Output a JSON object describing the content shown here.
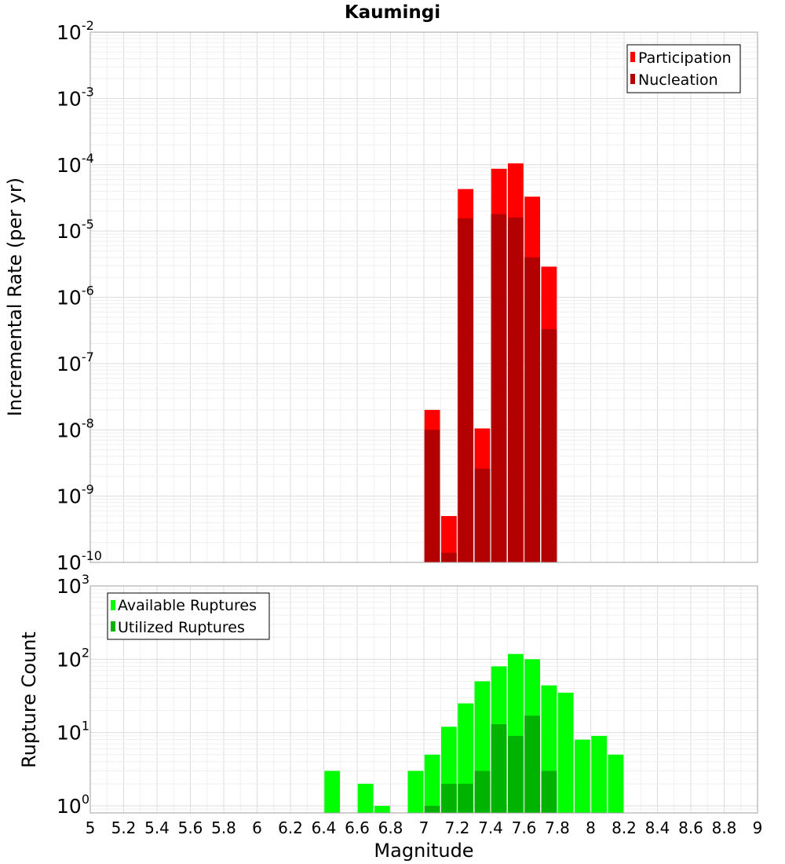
{
  "colors": {
    "participation": "#ff0000",
    "nucleation": "#b30000",
    "available": "#00ff00",
    "utilized": "#00b300"
  },
  "chart_data": [
    {
      "type": "bar",
      "title": "Kaumingi",
      "xlabel": "",
      "ylabel": "Incremental Rate (per yr)",
      "yscale": "log",
      "ylim": [
        1e-10,
        0.01
      ],
      "xlim": [
        5,
        9
      ],
      "grid": true,
      "legend": {
        "placement": "top-right",
        "entries": [
          "Participation",
          "Nucleation"
        ]
      },
      "x": [
        7.05,
        7.15,
        7.25,
        7.35,
        7.45,
        7.55,
        7.65,
        7.75
      ],
      "series": [
        {
          "name": "Participation",
          "values": [
            2e-08,
            5e-10,
            4.3e-05,
            1.05e-08,
            8.7e-05,
            0.000105,
            3.3e-05,
            2.9e-06
          ]
        },
        {
          "name": "Nucleation",
          "values": [
            1e-08,
            1.4e-10,
            1.55e-05,
            2.6e-09,
            1.8e-05,
            1.6e-05,
            4e-06,
            3.3e-07
          ]
        }
      ]
    },
    {
      "type": "bar",
      "title": "",
      "xlabel": "Magnitude",
      "ylabel": "Rupture Count",
      "yscale": "log",
      "ylim": [
        0.8,
        1000
      ],
      "xlim": [
        5,
        9
      ],
      "grid": true,
      "legend": {
        "placement": "top-left",
        "entries": [
          "Available Ruptures",
          "Utilized Ruptures"
        ]
      },
      "x": [
        6.45,
        6.55,
        6.65,
        6.75,
        6.85,
        6.95,
        7.05,
        7.15,
        7.25,
        7.35,
        7.45,
        7.55,
        7.65,
        7.75,
        7.85,
        7.95,
        8.05,
        8.15
      ],
      "series": [
        {
          "name": "Available Ruptures",
          "values": [
            3,
            null,
            2,
            1,
            null,
            3,
            5,
            12,
            25,
            50,
            80,
            118,
            100,
            44,
            35,
            8,
            9,
            5
          ]
        },
        {
          "name": "Utilized Ruptures",
          "values": [
            null,
            null,
            null,
            null,
            null,
            null,
            1,
            2,
            2,
            3,
            13,
            9,
            17,
            3,
            null,
            null,
            null,
            null
          ]
        }
      ],
      "x_ticks": [
        "5",
        "5.2",
        "5.4",
        "5.6",
        "5.8",
        "6",
        "6.2",
        "6.4",
        "6.6",
        "6.8",
        "7",
        "7.2",
        "7.4",
        "7.6",
        "7.8",
        "8",
        "8.2",
        "8.4",
        "8.6",
        "8.8",
        "9"
      ]
    }
  ]
}
